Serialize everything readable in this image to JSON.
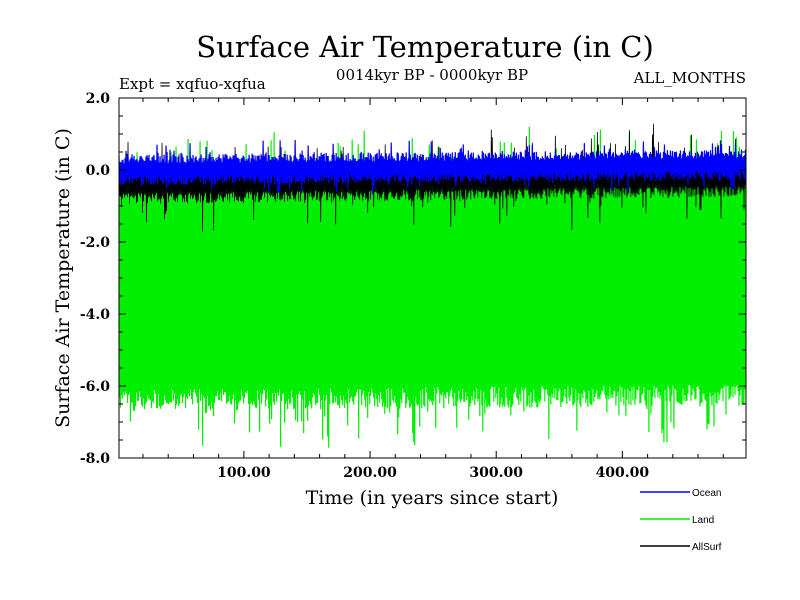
{
  "chart_data": {
    "type": "line",
    "title": "Surface Air Temperature (in C)",
    "subtitle_left": "Expt = xqfuo-xqfua",
    "subtitle_center": "0014kyr BP - 0000kyr BP",
    "subtitle_right": "ALL_MONTHS",
    "xlabel": "Time (in years since start)",
    "ylabel": "Surface Air Temperature (in C)",
    "xlim": [
      1,
      498
    ],
    "ylim": [
      -8.0,
      2.0
    ],
    "xticks": [
      100,
      200,
      300,
      400
    ],
    "xtick_labels": [
      "100.00",
      "200.00",
      "300.00",
      "400.00"
    ],
    "yticks": [
      2.0,
      0.0,
      -2.0,
      -4.0,
      -6.0,
      -8.0
    ],
    "ytick_labels": [
      "2.0",
      "0.0",
      "-2.0",
      "-4.0",
      "-6.0",
      "-8.0"
    ],
    "legend_position": "bottom-right, outside plot",
    "series": [
      {
        "name": "Land",
        "color": "#00ee00",
        "baseline": -3.2,
        "envelope_high": -0.3,
        "envelope_low": -6.4,
        "approx_max": 0.8,
        "approx_min": -7.9,
        "note": "dense monthly oscillation between envelope values"
      },
      {
        "name": "AllSurf",
        "color": "#000000",
        "baseline": -0.4,
        "envelope_high": 0.1,
        "envelope_low": -0.8,
        "approx_min": -1.9
      },
      {
        "name": "Ocean",
        "color": "#0000ff",
        "baseline": -0.1,
        "envelope_high": 0.3,
        "envelope_low": -0.3,
        "approx_max": 0.8,
        "approx_min": -0.7
      }
    ],
    "legend_entries": [
      {
        "label": "Ocean",
        "color": "#0000ff"
      },
      {
        "label": "Land",
        "color": "#00ee00"
      },
      {
        "label": "AllSurf",
        "color": "#000000"
      }
    ]
  }
}
